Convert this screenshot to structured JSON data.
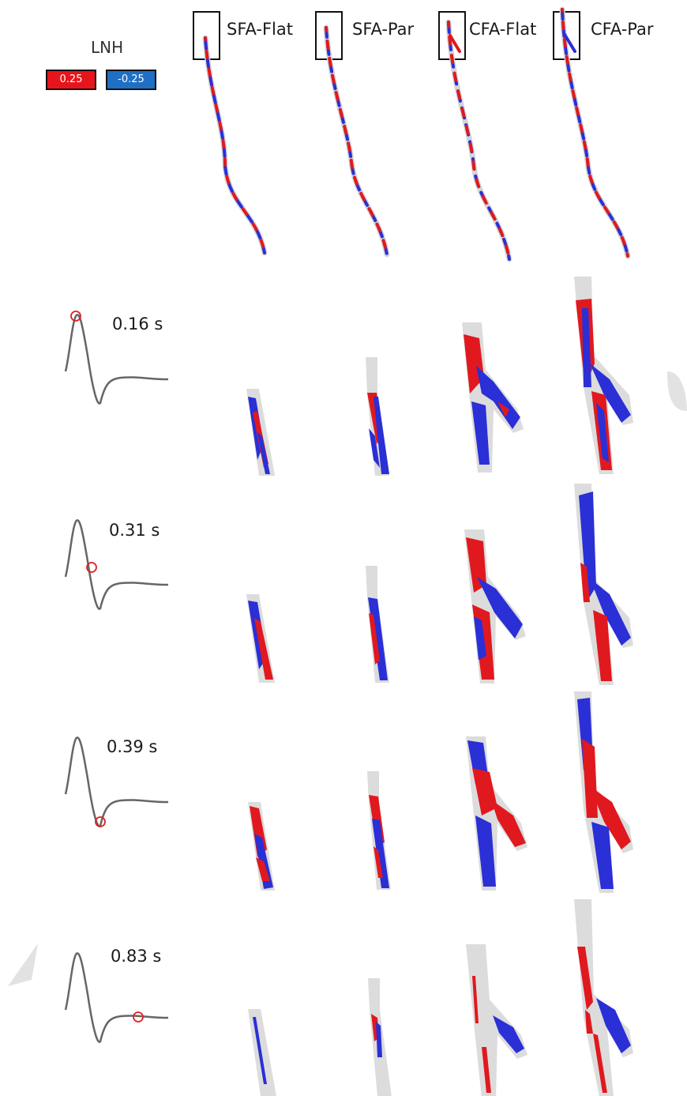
{
  "columns": [
    "SFA-Flat",
    "SFA-Par",
    "CFA-Flat",
    "CFA-Par"
  ],
  "legend": {
    "title": "LNH",
    "positive": {
      "label": "0.25",
      "color": "#e8141c"
    },
    "negative": {
      "label": "-0.25",
      "color": "#1f6fc5"
    }
  },
  "rows": [
    {
      "time": "0.16 s",
      "phase": 0.12
    },
    {
      "time": "0.31 s",
      "phase": 0.23
    },
    {
      "time": "0.39 s",
      "phase": 0.29
    },
    {
      "time": "0.83 s",
      "phase": 0.62
    }
  ],
  "colors": {
    "vessel": "#dcdcdc",
    "red": "#e0191f",
    "blue": "#2a2fd6",
    "waveform": "#666666",
    "marker": "#e02020"
  }
}
